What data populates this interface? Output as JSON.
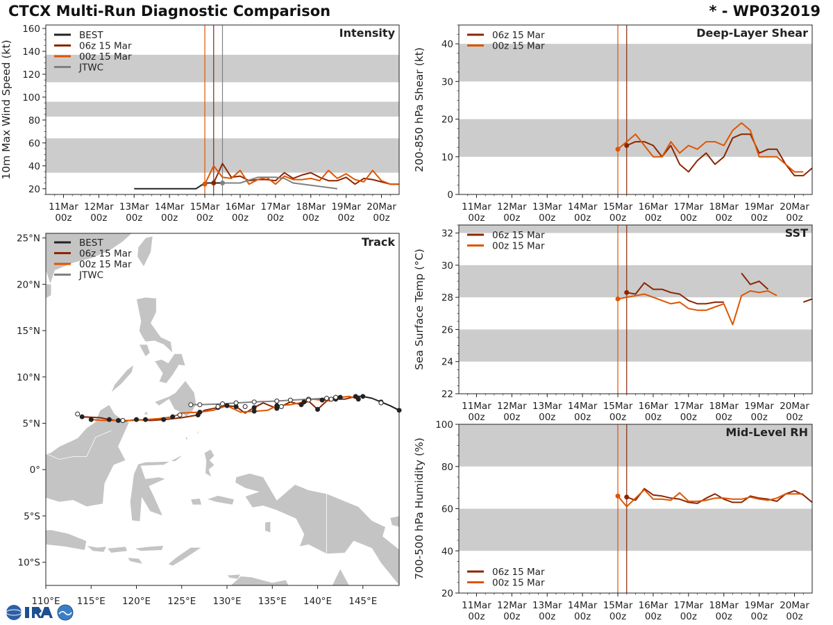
{
  "header": {
    "title": "CTCX Multi-Run Diagnostic Comparison",
    "storm_id": "* - WP032019"
  },
  "colors": {
    "best": "#222222",
    "run06z": "#8b2500",
    "run00z": "#dd5500",
    "jtwc": "#808080",
    "band": "#cccccc",
    "land": "#c4c4c4"
  },
  "time_axis": {
    "ticks": [
      {
        "top": "11Mar",
        "bottom": "00z"
      },
      {
        "top": "12Mar",
        "bottom": "00z"
      },
      {
        "top": "13Mar",
        "bottom": "00z"
      },
      {
        "top": "14Mar",
        "bottom": "00z"
      },
      {
        "top": "15Mar",
        "bottom": "00z"
      },
      {
        "top": "16Mar",
        "bottom": "00z"
      },
      {
        "top": "17Mar",
        "bottom": "00z"
      },
      {
        "top": "18Mar",
        "bottom": "00z"
      },
      {
        "top": "19Mar",
        "bottom": "00z"
      },
      {
        "top": "20Mar",
        "bottom": "00z"
      }
    ]
  },
  "chart_data": [
    {
      "id": "intensity",
      "type": "line",
      "title": "Intensity",
      "ylabel": "10m Max Wind Speed (kt)",
      "xlabel": "",
      "xlim": [
        10.5,
        20.5
      ],
      "ylim": [
        15,
        163
      ],
      "yticks": [
        20,
        40,
        60,
        80,
        100,
        120,
        140,
        160
      ],
      "shaded_bands": [
        [
          34,
          64
        ],
        [
          83,
          96
        ],
        [
          113,
          137
        ]
      ],
      "init_lines": [
        {
          "x": 15.0,
          "color": "run00z"
        },
        {
          "x": 15.25,
          "color": "run06z"
        },
        {
          "x": 15.5,
          "color": "jtwc"
        }
      ],
      "legend": [
        "BEST",
        "06z 15 Mar",
        "00z 15 Mar",
        "JTWC"
      ],
      "series": [
        {
          "name": "BEST",
          "color": "best",
          "x": [
            13.0,
            13.5,
            14.0,
            14.5,
            14.75,
            15.0,
            15.25,
            15.5
          ],
          "values": [
            20,
            20,
            20,
            20,
            20,
            25,
            25,
            25
          ]
        },
        {
          "name": "06z 15 Mar",
          "color": "run06z",
          "x": [
            15.25,
            15.5,
            15.75,
            16.0,
            16.25,
            16.5,
            16.75,
            17.0,
            17.25,
            17.5,
            17.75,
            18.0,
            18.25,
            18.5,
            18.75,
            19.0,
            19.25,
            19.5,
            19.75,
            20.0,
            20.25,
            20.5
          ],
          "values": [
            25,
            42,
            30,
            31,
            27,
            28,
            28,
            27,
            34,
            29,
            32,
            34,
            30,
            27,
            27,
            30,
            24,
            29,
            28,
            26,
            24,
            24
          ]
        },
        {
          "name": "00z 15 Mar",
          "color": "run00z",
          "x": [
            15.0,
            15.25,
            15.5,
            15.75,
            16.0,
            16.25,
            16.5,
            16.75,
            17.0,
            17.25,
            17.5,
            17.75,
            18.0,
            18.25,
            18.5,
            18.75,
            19.0,
            19.25,
            19.5,
            19.75,
            20.0,
            20.25,
            20.5
          ],
          "values": [
            24,
            40,
            30,
            29,
            36,
            24,
            28,
            30,
            24,
            31,
            28,
            28,
            29,
            27,
            36,
            29,
            33,
            28,
            26,
            36,
            27,
            24,
            24
          ]
        },
        {
          "name": "JTWC",
          "color": "jtwc",
          "x": [
            15.5,
            16.0,
            16.5,
            17.0,
            17.25,
            17.5,
            18.0,
            18.5,
            18.75
          ],
          "values": [
            25,
            25,
            30,
            30,
            29,
            25,
            23,
            21,
            20
          ]
        }
      ]
    },
    {
      "id": "shear",
      "type": "line",
      "title": "Deep-Layer Shear",
      "ylabel": "200-850 hPa Shear (kt)",
      "xlabel": "",
      "xlim": [
        10.5,
        20.5
      ],
      "ylim": [
        0,
        45
      ],
      "yticks": [
        0,
        10,
        20,
        30,
        40
      ],
      "shaded_bands": [
        [
          10,
          20
        ],
        [
          30,
          40
        ]
      ],
      "init_lines": [
        {
          "x": 15.0,
          "color": "run00z"
        },
        {
          "x": 15.25,
          "color": "run06z"
        }
      ],
      "legend": [
        "06z 15 Mar",
        "00z 15 Mar"
      ],
      "series": [
        {
          "name": "06z 15 Mar",
          "color": "run06z",
          "x": [
            15.25,
            15.5,
            15.75,
            16.0,
            16.25,
            16.5,
            16.75,
            17.0,
            17.25,
            17.5,
            17.75,
            18.0,
            18.25,
            18.5,
            18.75,
            19.0,
            19.25,
            19.5,
            19.75,
            20.0,
            20.25,
            20.5
          ],
          "values": [
            13,
            14,
            14,
            13,
            10,
            13,
            8,
            6,
            9,
            11,
            8,
            10,
            15,
            16,
            16,
            11,
            12,
            12,
            8,
            5,
            5,
            7
          ]
        },
        {
          "name": "00z 15 Mar",
          "color": "run00z",
          "x": [
            15.0,
            15.25,
            15.5,
            15.75,
            16.0,
            16.25,
            16.5,
            16.75,
            17.0,
            17.25,
            17.5,
            17.75,
            18.0,
            18.25,
            18.5,
            18.75,
            19.0,
            19.25,
            19.5,
            19.75,
            20.0,
            20.25
          ],
          "values": [
            12,
            14,
            16,
            13,
            10,
            10,
            14,
            11,
            13,
            12,
            14,
            14,
            13,
            17,
            19,
            17,
            10,
            10,
            10,
            8,
            6,
            6
          ]
        }
      ]
    },
    {
      "id": "sst",
      "type": "line",
      "title": "SST",
      "ylabel": "Sea Surface Temp (°C)",
      "xlabel": "",
      "xlim": [
        10.5,
        20.5
      ],
      "ylim": [
        22,
        32.5
      ],
      "yticks": [
        22,
        24,
        26,
        28,
        30,
        32
      ],
      "shaded_bands": [
        [
          24,
          26
        ],
        [
          28,
          30
        ],
        [
          32,
          32.5
        ]
      ],
      "init_lines": [
        {
          "x": 15.0,
          "color": "run00z"
        },
        {
          "x": 15.25,
          "color": "run06z"
        }
      ],
      "legend": [
        "06z 15 Mar",
        "00z 15 Mar"
      ],
      "series": [
        {
          "name": "06z 15 Mar",
          "color": "run06z",
          "x": [
            15.25,
            15.5,
            15.75,
            16.0,
            16.25,
            16.5,
            16.75,
            17.0,
            17.25,
            17.5,
            17.75,
            18.0
          ],
          "values": [
            28.3,
            28.2,
            28.9,
            28.5,
            28.5,
            28.3,
            28.2,
            27.8,
            27.6,
            27.6,
            27.7,
            27.7
          ]
        },
        {
          "name": "06z 15 Mar (segment 2)",
          "color": "run06z",
          "x": [
            18.5,
            18.75,
            19.0,
            19.25
          ],
          "values": [
            29.5,
            28.8,
            29.0,
            28.5
          ]
        },
        {
          "name": "06z 15 Mar (segment 3)",
          "color": "run06z",
          "x": [
            20.25,
            20.5
          ],
          "values": [
            27.7,
            27.9
          ]
        },
        {
          "name": "00z 15 Mar",
          "color": "run00z",
          "x": [
            15.0,
            15.25,
            15.5,
            15.75,
            16.0,
            16.25,
            16.5,
            16.75,
            17.0,
            17.25,
            17.5,
            17.75,
            18.0,
            18.25,
            18.5,
            18.75,
            19.0,
            19.25,
            19.5
          ],
          "values": [
            27.9,
            28.0,
            28.1,
            28.2,
            28.0,
            27.8,
            27.6,
            27.7,
            27.3,
            27.2,
            27.2,
            27.4,
            27.6,
            26.3,
            28.1,
            28.4,
            28.3,
            28.4,
            28.1
          ]
        }
      ]
    },
    {
      "id": "rh",
      "type": "line",
      "title": "Mid-Level RH",
      "ylabel": "700-500 hPa Humidity (%)",
      "xlabel": "",
      "xlim": [
        10.5,
        20.5
      ],
      "ylim": [
        20,
        100
      ],
      "yticks": [
        20,
        40,
        60,
        80,
        100
      ],
      "shaded_bands": [
        [
          40,
          60
        ],
        [
          80,
          100
        ]
      ],
      "init_lines": [
        {
          "x": 15.0,
          "color": "run00z"
        },
        {
          "x": 15.25,
          "color": "run06z"
        }
      ],
      "legend": [
        "06z 15 Mar",
        "00z 15 Mar"
      ],
      "series": [
        {
          "name": "06z 15 Mar",
          "color": "run06z",
          "x": [
            15.25,
            15.5,
            15.75,
            16.0,
            16.25,
            16.5,
            16.75,
            17.0,
            17.25,
            17.5,
            17.75,
            18.0,
            18.25,
            18.5,
            18.75,
            19.0,
            19.25,
            19.5,
            19.75,
            20.0,
            20.25,
            20.5
          ],
          "values": [
            65.5,
            64,
            69.5,
            66.5,
            66,
            65,
            64.5,
            63,
            62.5,
            65,
            67,
            64.5,
            63,
            63,
            66,
            65,
            64.5,
            63.5,
            67,
            68.5,
            66.5,
            63
          ]
        },
        {
          "name": "00z 15 Mar",
          "color": "run00z",
          "x": [
            15.0,
            15.25,
            15.5,
            15.75,
            16.0,
            16.25,
            16.5,
            16.75,
            17.0,
            17.25,
            17.5,
            17.75,
            18.0,
            18.25,
            18.5,
            18.75,
            19.0,
            19.25,
            19.5,
            19.75,
            20.0,
            20.25
          ],
          "values": [
            66,
            61,
            65,
            69,
            64.5,
            64.5,
            64,
            67.5,
            63.5,
            63.5,
            64,
            65,
            65,
            64.5,
            64.5,
            65.5,
            64.5,
            64,
            65,
            67,
            67,
            67
          ]
        }
      ]
    },
    {
      "id": "track",
      "type": "scatter",
      "title": "Track",
      "xlabel": "",
      "ylabel": "",
      "xlim": [
        110,
        149
      ],
      "ylim": [
        -12.5,
        25.5
      ],
      "xticks": [
        {
          "v": 110,
          "label": "110°E"
        },
        {
          "v": 115,
          "label": "115°E"
        },
        {
          "v": 120,
          "label": "120°E"
        },
        {
          "v": 125,
          "label": "125°E"
        },
        {
          "v": 130,
          "label": "130°E"
        },
        {
          "v": 135,
          "label": "135°E"
        },
        {
          "v": 140,
          "label": "140°E"
        },
        {
          "v": 145,
          "label": "145°E"
        }
      ],
      "yticks": [
        {
          "v": 25,
          "label": "25°N"
        },
        {
          "v": 20,
          "label": "20°N"
        },
        {
          "v": 15,
          "label": "15°N"
        },
        {
          "v": 10,
          "label": "10°N"
        },
        {
          "v": 5,
          "label": "5°N"
        },
        {
          "v": 0,
          "label": "0°"
        },
        {
          "v": -5,
          "label": "5°S"
        },
        {
          "v": -10,
          "label": "10°S"
        }
      ],
      "legend": [
        "BEST",
        "06z 15 Mar",
        "00z 15 Mar",
        "JTWC"
      ],
      "series": [
        {
          "name": "BEST",
          "color": "best",
          "markers": "filled",
          "lon": [
            149.0,
            148.0,
            147.0,
            146.0,
            145.0,
            144.2
          ],
          "lat": [
            6.4,
            6.9,
            7.3,
            7.7,
            7.9,
            7.9
          ]
        },
        {
          "name": "06z 15 Mar",
          "color": "run06z",
          "markers": "filled",
          "lon": [
            144.2,
            143.0,
            142.0,
            141.0,
            140.0,
            139.0,
            138.2,
            137.0,
            135.5,
            134.0,
            133.0,
            132.0,
            131.0,
            130.0,
            129.0,
            127.5,
            126.8,
            125.0,
            123.0,
            121.5,
            120.0,
            118.5,
            117.0,
            116.0,
            114.0
          ],
          "lat": [
            7.9,
            7.6,
            7.6,
            7.4,
            6.5,
            7.4,
            7.0,
            7.3,
            6.6,
            7.2,
            6.7,
            6.1,
            6.8,
            6.9,
            6.7,
            6.4,
            5.9,
            5.6,
            5.4,
            5.3,
            5.4,
            5.2,
            5.4,
            5.6,
            5.7
          ]
        },
        {
          "name": "00z 15 Mar",
          "color": "run00z",
          "markers": "filled",
          "lon": [
            144.5,
            143.5,
            142.5,
            141.5,
            140.5,
            139.5,
            138.5,
            137.0,
            135.5,
            134.5,
            133.0,
            131.5,
            130.0,
            128.5,
            127.0,
            125.0,
            124.0,
            122.5,
            121.0,
            119.5,
            118.0,
            116.5,
            115.0
          ],
          "lat": [
            7.6,
            7.9,
            7.8,
            7.4,
            7.5,
            7.6,
            7.3,
            7.0,
            6.9,
            6.4,
            6.3,
            6.2,
            6.9,
            6.4,
            6.2,
            6.1,
            5.7,
            5.5,
            5.4,
            5.3,
            5.3,
            5.3,
            5.4
          ]
        },
        {
          "name": "JTWC",
          "color": "jtwc",
          "markers": "open",
          "lon": [
            142.0,
            141.0,
            139.0,
            137.0,
            135.5,
            133.0,
            131.0,
            129.5,
            127.0,
            126.0
          ],
          "lat": [
            7.8,
            7.7,
            7.6,
            7.5,
            7.4,
            7.3,
            7.2,
            7.1,
            7.0,
            7.0
          ]
        },
        {
          "name": "BEST history (open)",
          "color": "best",
          "markers": "open",
          "lon": [
            147.0,
            141.5,
            139.0,
            136.0,
            132.0,
            129.0,
            124.8,
            118.5,
            113.5
          ],
          "lat": [
            7.2,
            7.6,
            7.5,
            6.8,
            6.8,
            6.8,
            5.9,
            5.3,
            6.0
          ]
        }
      ]
    }
  ]
}
